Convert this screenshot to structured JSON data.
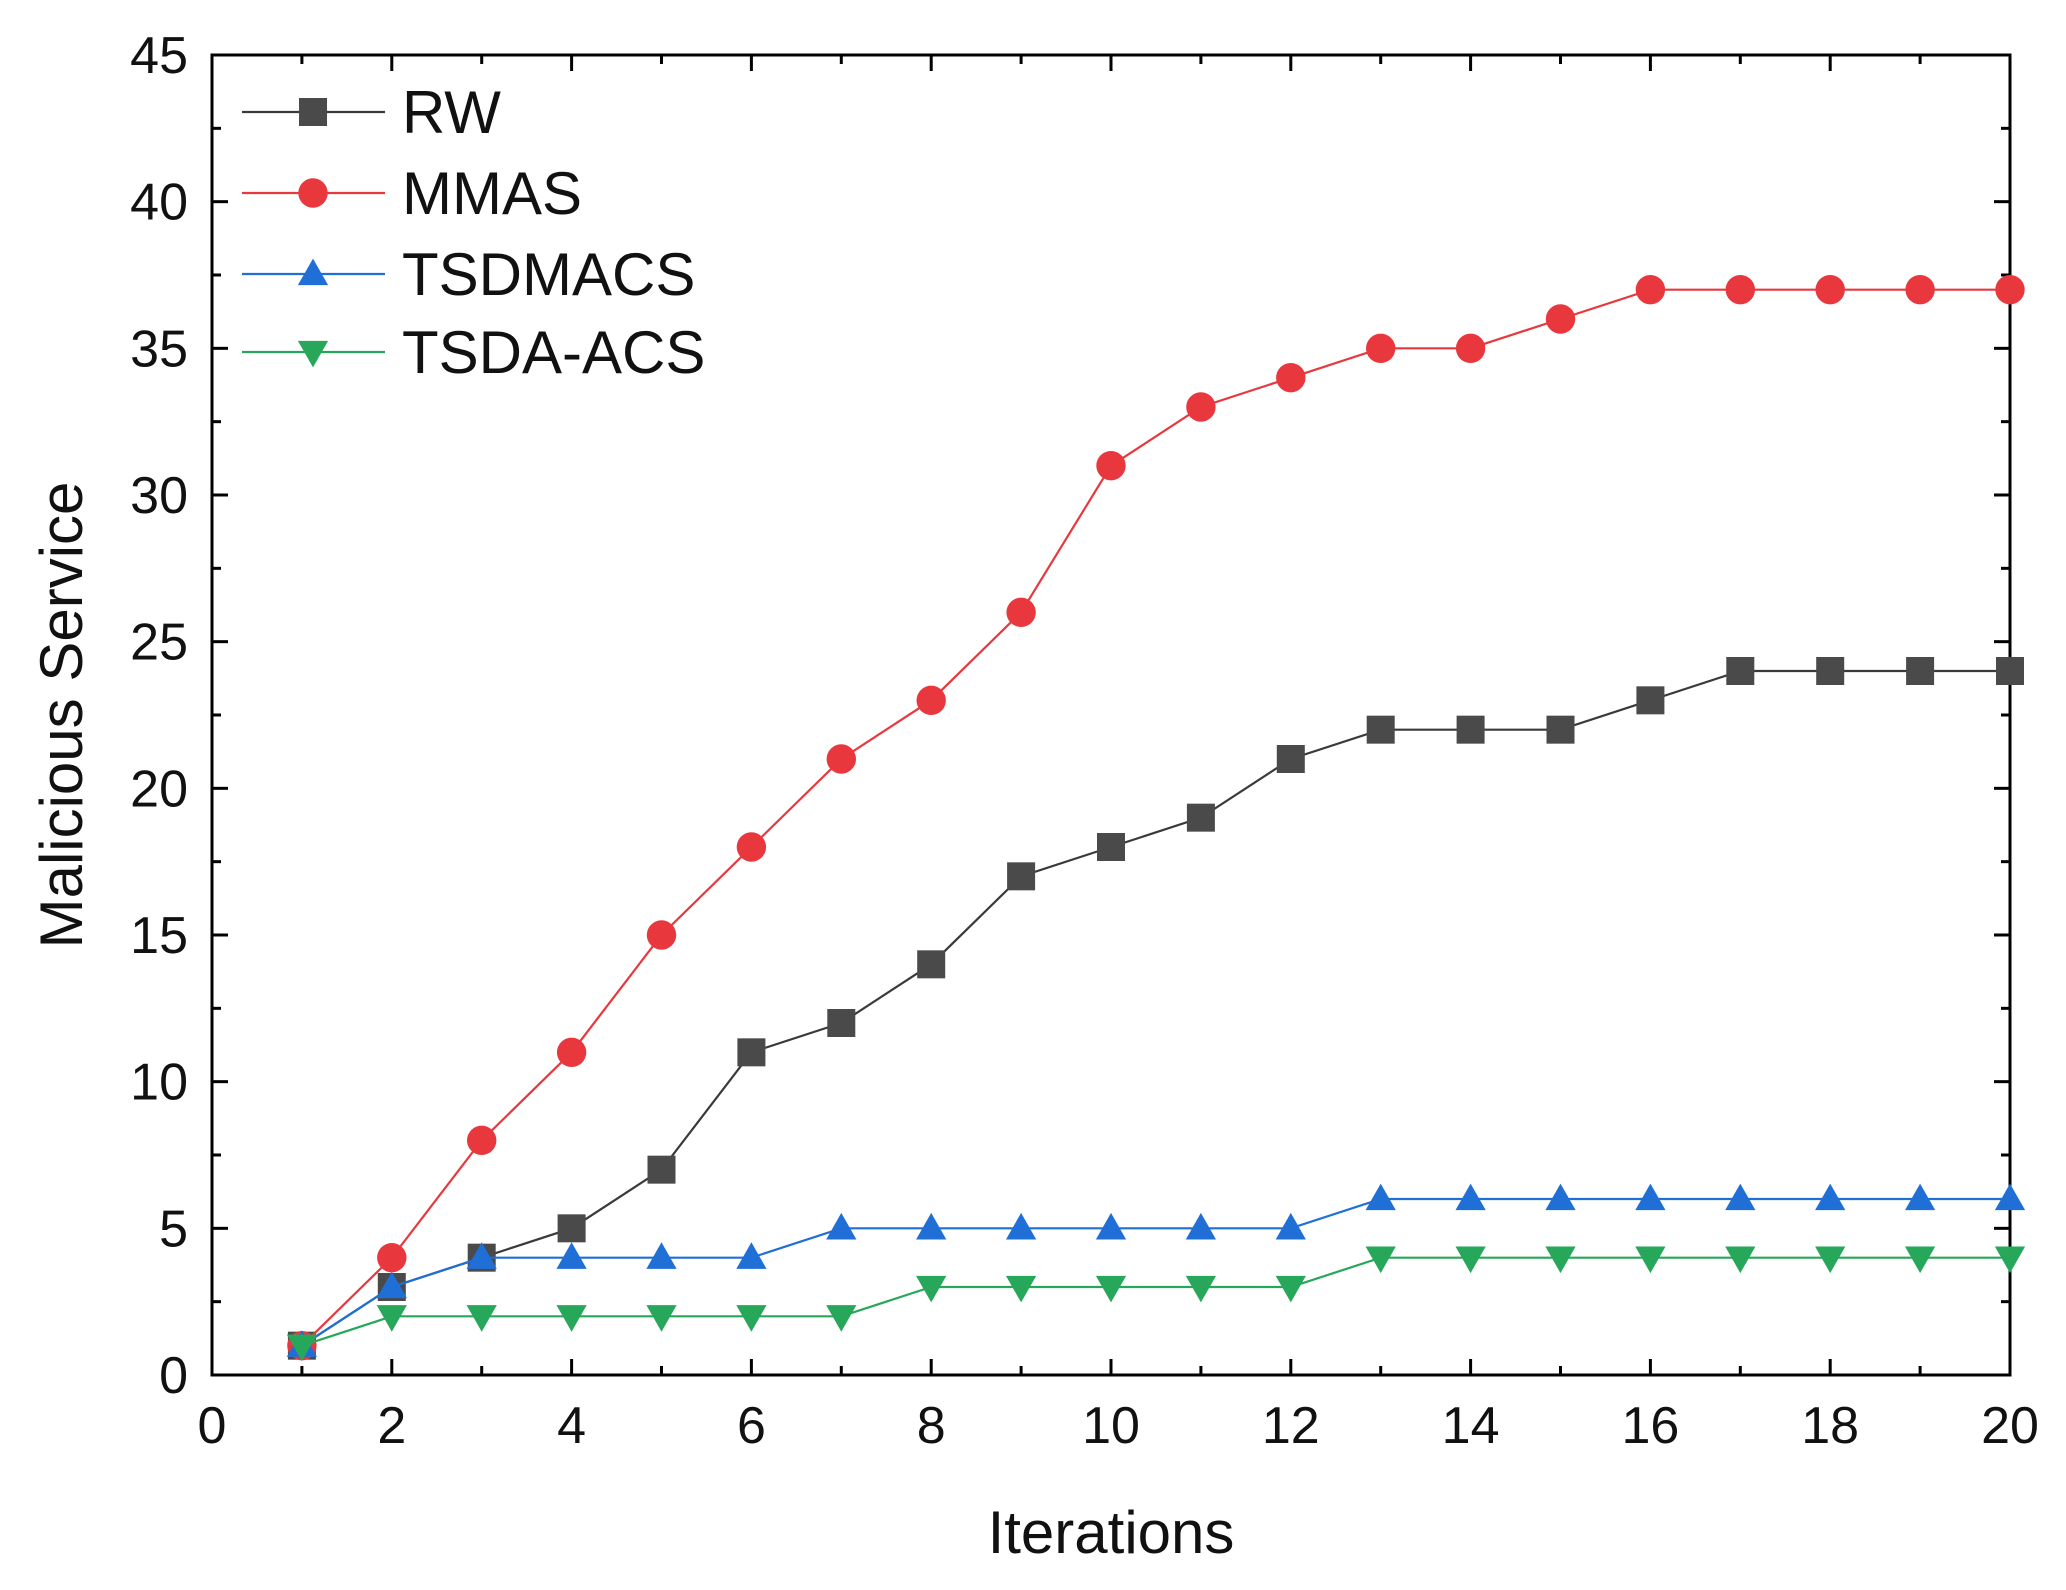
{
  "chart_data": {
    "type": "line",
    "title": "",
    "xlabel": "Iterations",
    "ylabel": "Malicious Service",
    "xlim": [
      0,
      20
    ],
    "ylim": [
      0,
      45
    ],
    "x_major_ticks": [
      0,
      2,
      4,
      6,
      8,
      10,
      12,
      14,
      16,
      18,
      20
    ],
    "y_major_ticks": [
      0,
      5,
      10,
      15,
      20,
      25,
      30,
      35,
      40,
      45
    ],
    "x_tick_labels": [
      "0",
      "2",
      "4",
      "6",
      "8",
      "10",
      "12",
      "14",
      "16",
      "18",
      "20"
    ],
    "y_tick_labels": [
      "0",
      "5",
      "10",
      "15",
      "20",
      "25",
      "30",
      "35",
      "40",
      "45"
    ],
    "grid": false,
    "legend_position": "top-left",
    "x": [
      1,
      2,
      3,
      4,
      5,
      6,
      7,
      8,
      9,
      10,
      11,
      12,
      13,
      14,
      15,
      16,
      17,
      18,
      19,
      20
    ],
    "series": [
      {
        "name": "RW",
        "color": "#4a4a4a",
        "line_color": "#3a3a3a",
        "marker": "square",
        "values": [
          1,
          3,
          4,
          5,
          7,
          11,
          12,
          14,
          17,
          18,
          19,
          21,
          22,
          22,
          22,
          23,
          24,
          24,
          24,
          24
        ]
      },
      {
        "name": "MMAS",
        "color": "#e8383d",
        "line_color": "#e8383d",
        "marker": "circle",
        "values": [
          1,
          4,
          8,
          11,
          15,
          18,
          21,
          23,
          26,
          31,
          33,
          34,
          35,
          35,
          36,
          37,
          37,
          37,
          37,
          37
        ]
      },
      {
        "name": "TSDMACS",
        "color": "#1f6fd6",
        "line_color": "#1f6fd6",
        "marker": "triangle-up",
        "values": [
          1,
          3,
          4,
          4,
          4,
          4,
          5,
          5,
          5,
          5,
          5,
          5,
          6,
          6,
          6,
          6,
          6,
          6,
          6,
          6
        ]
      },
      {
        "name": "TSDA-ACS",
        "color": "#27a75a",
        "line_color": "#27a75a",
        "marker": "triangle-down",
        "values": [
          1,
          2,
          2,
          2,
          2,
          2,
          2,
          3,
          3,
          3,
          3,
          3,
          4,
          4,
          4,
          4,
          4,
          4,
          4,
          4
        ]
      }
    ]
  }
}
